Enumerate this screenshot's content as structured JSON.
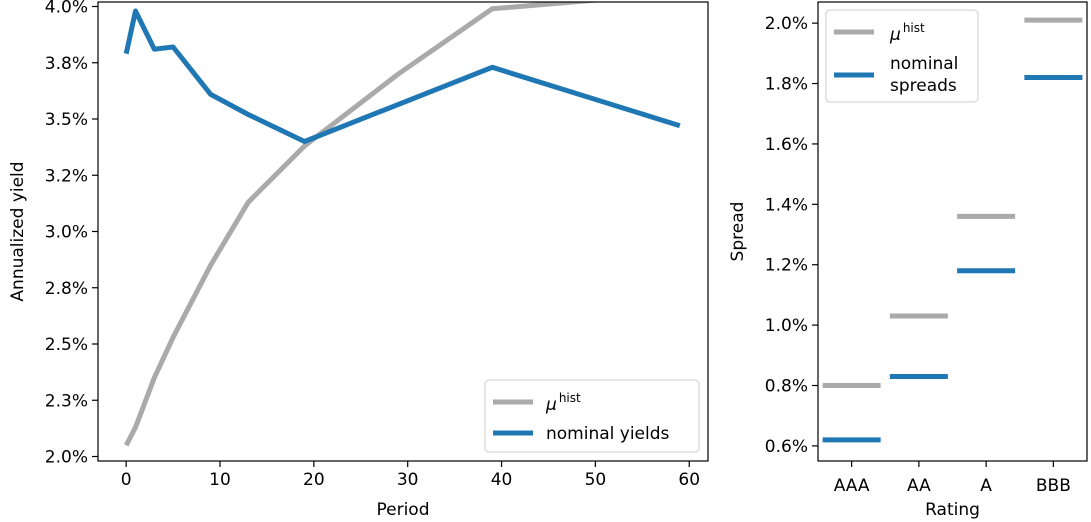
{
  "colors": {
    "mu_hist": "#aaaaaa",
    "nominal": "#1f77b4"
  },
  "chart_data": [
    {
      "type": "line",
      "xlabel": "Period",
      "ylabel": "Annualized yield",
      "xlim": [
        -3,
        62
      ],
      "ylim": [
        0.0198,
        0.0402
      ],
      "xticks": [
        0,
        10,
        20,
        30,
        40,
        50,
        60
      ],
      "yticks": [
        0.02,
        0.0225,
        0.025,
        0.0275,
        0.03,
        0.0325,
        0.035,
        0.0375,
        0.04
      ],
      "ytick_labels": [
        "2.0%",
        "2.3%",
        "2.5%",
        "2.8%",
        "3.0%",
        "3.2%",
        "3.5%",
        "3.8%",
        "4.0%"
      ],
      "legend": {
        "placement": "lower-right",
        "entries": [
          {
            "label": "μ",
            "sup": "hist",
            "series": 0
          },
          {
            "label": "nominal yields",
            "series": 1
          }
        ]
      },
      "series": [
        {
          "name": "μ^hist",
          "color": "#aaaaaa",
          "x": [
            0,
            1,
            3,
            5,
            9,
            13,
            19,
            29,
            39,
            59
          ],
          "y": [
            0.0205,
            0.0213,
            0.0235,
            0.0253,
            0.0285,
            0.0313,
            0.0338,
            0.037,
            0.0399,
            0.0406
          ]
        },
        {
          "name": "nominal yields",
          "color": "#1f77b4",
          "x": [
            0,
            1,
            3,
            5,
            9,
            13,
            19,
            39,
            59
          ],
          "y": [
            0.0379,
            0.0398,
            0.0381,
            0.0382,
            0.0361,
            0.0352,
            0.034,
            0.0373,
            0.0347
          ]
        }
      ]
    },
    {
      "type": "scatter",
      "marker": "hline",
      "xlabel": "Rating",
      "ylabel": "Spread",
      "categories": [
        "AAA",
        "AA",
        "A",
        "BBB"
      ],
      "ylim": [
        0.0055,
        0.0207
      ],
      "yticks": [
        0.006,
        0.008,
        0.01,
        0.012,
        0.014,
        0.016,
        0.018,
        0.02
      ],
      "ytick_labels": [
        "0.6%",
        "0.8%",
        "1.0%",
        "1.2%",
        "1.4%",
        "1.6%",
        "1.8%",
        "2.0%"
      ],
      "legend": {
        "placement": "upper-left",
        "entries": [
          {
            "label": "μ",
            "sup": "hist",
            "series": 0
          },
          {
            "label": "nominal",
            "label2": "spreads",
            "series": 1
          }
        ]
      },
      "series": [
        {
          "name": "μ^hist",
          "color": "#aaaaaa",
          "values": [
            0.008,
            0.0103,
            0.0136,
            0.0201
          ]
        },
        {
          "name": "nominal spreads",
          "color": "#1f77b4",
          "values": [
            0.0062,
            0.0083,
            0.0118,
            0.0182
          ]
        }
      ]
    }
  ]
}
